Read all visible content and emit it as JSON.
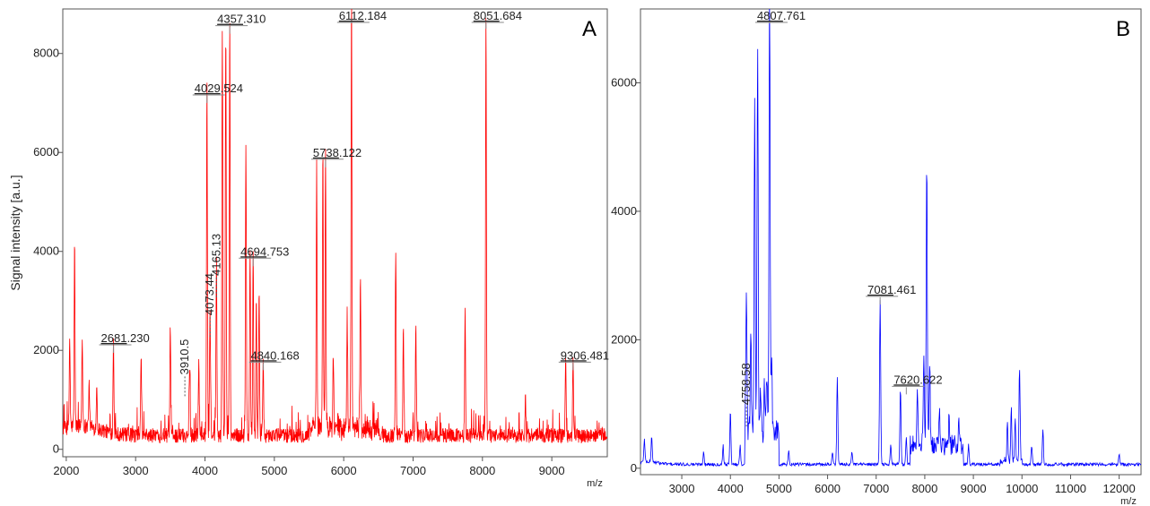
{
  "chart_data": [
    {
      "type": "line",
      "panel": "A",
      "ylabel": "Signal intensity [a.u.]",
      "xunit": "m/z",
      "xlim": [
        1950,
        9800
      ],
      "ylim": [
        -150,
        8900
      ],
      "xticks": [
        "2000",
        "3000",
        "4000",
        "5000",
        "6000",
        "7000",
        "8000",
        "9000"
      ],
      "yticks": [
        "0",
        "2000",
        "4000",
        "6000",
        "8000"
      ],
      "color": "#ff0000",
      "series": [
        {
          "peaks": [
            [
              2050,
              1800
            ],
            [
              2120,
              3700
            ],
            [
              2230,
              1700
            ],
            [
              2330,
              900
            ],
            [
              2440,
              850
            ],
            [
              2681,
              1950
            ],
            [
              3080,
              1700
            ],
            [
              3500,
              2150
            ],
            [
              3780,
              1500
            ],
            [
              3910,
              1400
            ],
            [
              4029,
              7000
            ],
            [
              4073,
              2600
            ],
            [
              4165,
              3400
            ],
            [
              4250,
              8100
            ],
            [
              4300,
              8300
            ],
            [
              4357,
              8400
            ],
            [
              4590,
              6000
            ],
            [
              4650,
              3800
            ],
            [
              4694,
              3700
            ],
            [
              4740,
              2800
            ],
            [
              4780,
              3000
            ],
            [
              4840,
              1600
            ],
            [
              5610,
              5300
            ],
            [
              5700,
              5600
            ],
            [
              5738,
              5700
            ],
            [
              5850,
              1500
            ],
            [
              6050,
              2300
            ],
            [
              6112,
              8700
            ],
            [
              6240,
              3000
            ],
            [
              6750,
              3600
            ],
            [
              6860,
              2200
            ],
            [
              7040,
              2300
            ],
            [
              7750,
              2500
            ],
            [
              8051,
              8500
            ],
            [
              8620,
              800
            ],
            [
              9200,
              1500
            ],
            [
              9306,
              1600
            ]
          ]
        }
      ],
      "annotations": [
        {
          "mass": "2681",
          "dec": ".230",
          "x": 2681,
          "y": 1950
        },
        {
          "mass": "4029",
          "dec": ".524",
          "x": 4029,
          "y": 7000
        },
        {
          "mass": "4357",
          "dec": ".310",
          "x": 4357,
          "y": 8400
        },
        {
          "mass": "4694",
          "dec": ".753",
          "x": 4694,
          "y": 3700
        },
        {
          "mass": "4840",
          "dec": ".168",
          "x": 4840,
          "y": 1600
        },
        {
          "mass": "5738",
          "dec": ".122",
          "x": 5738,
          "y": 5700
        },
        {
          "mass": "6112",
          "dec": ".184",
          "x": 6112,
          "y": 8700
        },
        {
          "mass": "8051",
          "dec": ".684",
          "x": 8051,
          "y": 8500
        },
        {
          "mass": "9306",
          "dec": ".481",
          "x": 9306,
          "y": 1600
        }
      ],
      "vertical_annotations": [
        {
          "label": "3910.5",
          "x": 3710,
          "y": 1400
        },
        {
          "label": "4073.44",
          "x": 4073,
          "y": 2600
        },
        {
          "label": "4165.13",
          "x": 4165,
          "y": 3400
        }
      ]
    },
    {
      "type": "line",
      "panel": "B",
      "ylabel": "",
      "xunit": "m/z",
      "xlim": [
        2150,
        12450
      ],
      "ylim": [
        -100,
        7150
      ],
      "xticks": [
        "3000",
        "4000",
        "5000",
        "6000",
        "7000",
        "8000",
        "9000",
        "10000",
        "11000",
        "12000"
      ],
      "yticks": [
        "0",
        "2000",
        "4000",
        "6000"
      ],
      "color": "#0000ff",
      "series": [
        {
          "peaks": [
            [
              2230,
              350
            ],
            [
              2380,
              400
            ],
            [
              3450,
              200
            ],
            [
              3850,
              300
            ],
            [
              4000,
              850
            ],
            [
              4200,
              300
            ],
            [
              4330,
              2300
            ],
            [
              4420,
              1500
            ],
            [
              4500,
              5300
            ],
            [
              4560,
              6050
            ],
            [
              4620,
              700
            ],
            [
              4700,
              700
            ],
            [
              4750,
              950
            ],
            [
              4807,
              6950
            ],
            [
              4850,
              1100
            ],
            [
              5200,
              200
            ],
            [
              6100,
              200
            ],
            [
              6200,
              1350
            ],
            [
              6500,
              200
            ],
            [
              7081,
              2550
            ],
            [
              7300,
              300
            ],
            [
              7500,
              1200
            ],
            [
              7620,
              450
            ],
            [
              7850,
              800
            ],
            [
              7980,
              1350
            ],
            [
              8040,
              4450
            ],
            [
              8100,
              1300
            ],
            [
              8300,
              500
            ],
            [
              8500,
              400
            ],
            [
              8700,
              450
            ],
            [
              8900,
              300
            ],
            [
              9700,
              600
            ],
            [
              9780,
              800
            ],
            [
              9860,
              700
            ],
            [
              9950,
              1500
            ],
            [
              10200,
              300
            ],
            [
              10430,
              550
            ],
            [
              12000,
              150
            ]
          ]
        }
      ],
      "annotations": [
        {
          "mass": "4807",
          "dec": ".761",
          "x": 4807,
          "y": 6950
        },
        {
          "mass": "7081",
          "dec": ".461",
          "x": 7081,
          "y": 2550
        },
        {
          "mass": "7620",
          "dec": ".622",
          "x": 7620,
          "y": 1150
        }
      ],
      "vertical_annotations": [
        {
          "label": "4758.58",
          "x": 4330,
          "y": 900
        }
      ]
    }
  ]
}
